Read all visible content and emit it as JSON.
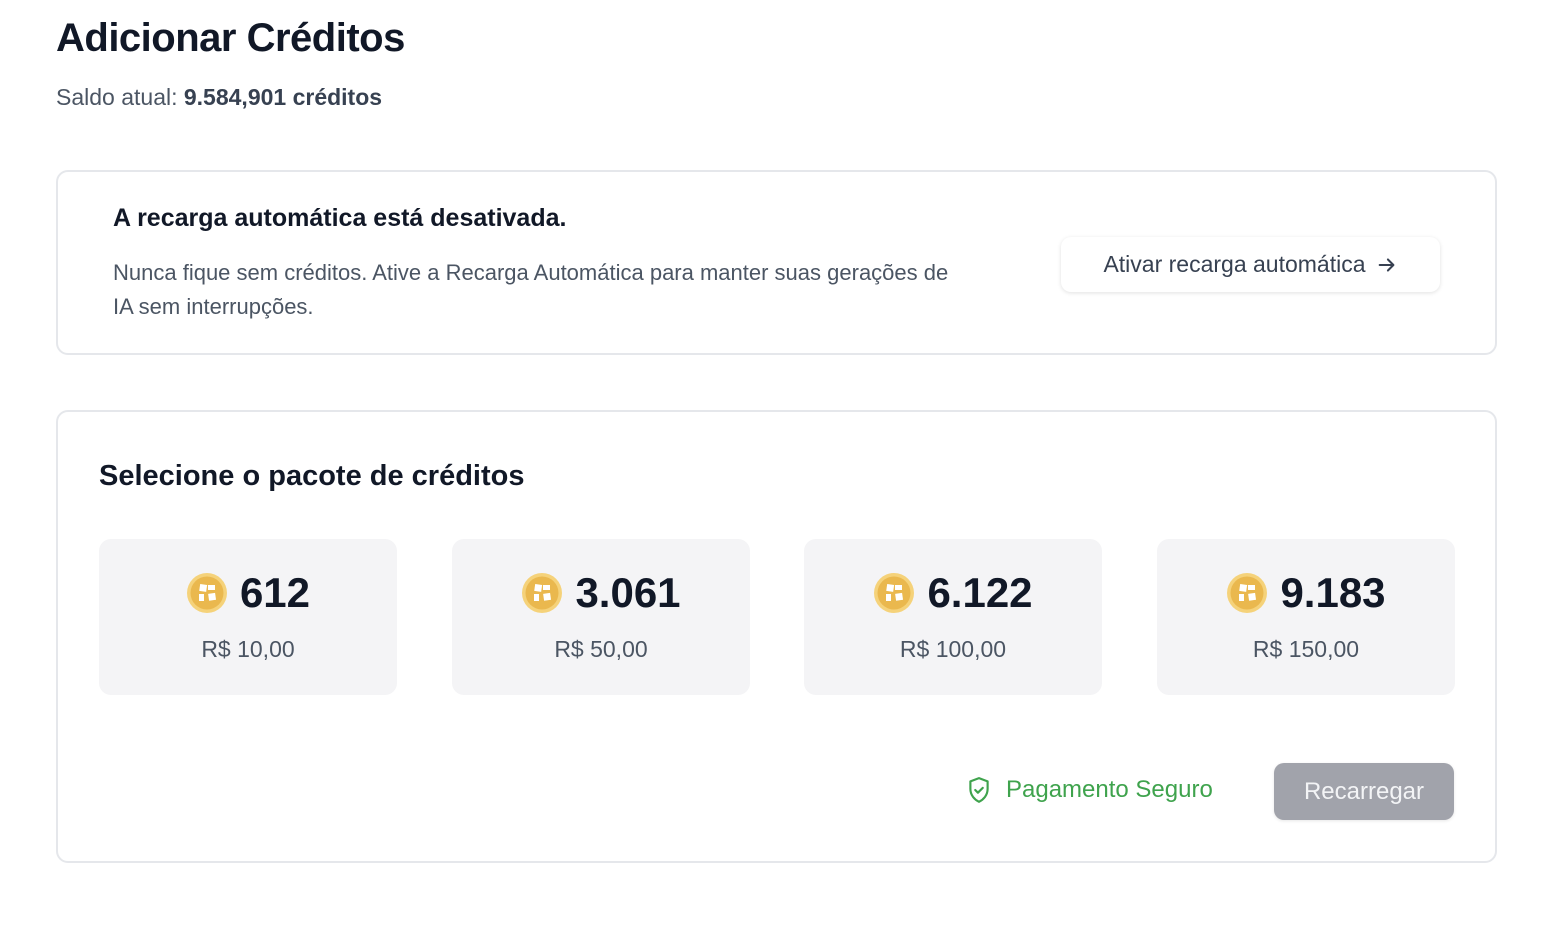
{
  "header": {
    "title": "Adicionar Créditos",
    "balance_label": "Saldo atual:",
    "balance_value": "9.584,901 créditos"
  },
  "auto_recharge": {
    "heading": "A recarga automática está desativada.",
    "description": "Nunca fique sem créditos. Ative a Recarga Automática para manter suas gerações de IA sem interrupções.",
    "button_label": "Ativar recarga automática",
    "button_icon": "arrow-right-icon"
  },
  "packages": {
    "heading": "Selecione o pacote de créditos",
    "items": [
      {
        "credits": "612",
        "price": "R$ 10,00"
      },
      {
        "credits": "3.061",
        "price": "R$ 50,00"
      },
      {
        "credits": "6.122",
        "price": "R$ 100,00"
      },
      {
        "credits": "9.183",
        "price": "R$ 150,00"
      }
    ],
    "secure_label": "Pagamento Seguro",
    "recharge_label": "Recarregar"
  },
  "colors": {
    "coin": "#eab84e",
    "secure": "#3fa34d",
    "button_disabled": "#a1a3ab"
  }
}
